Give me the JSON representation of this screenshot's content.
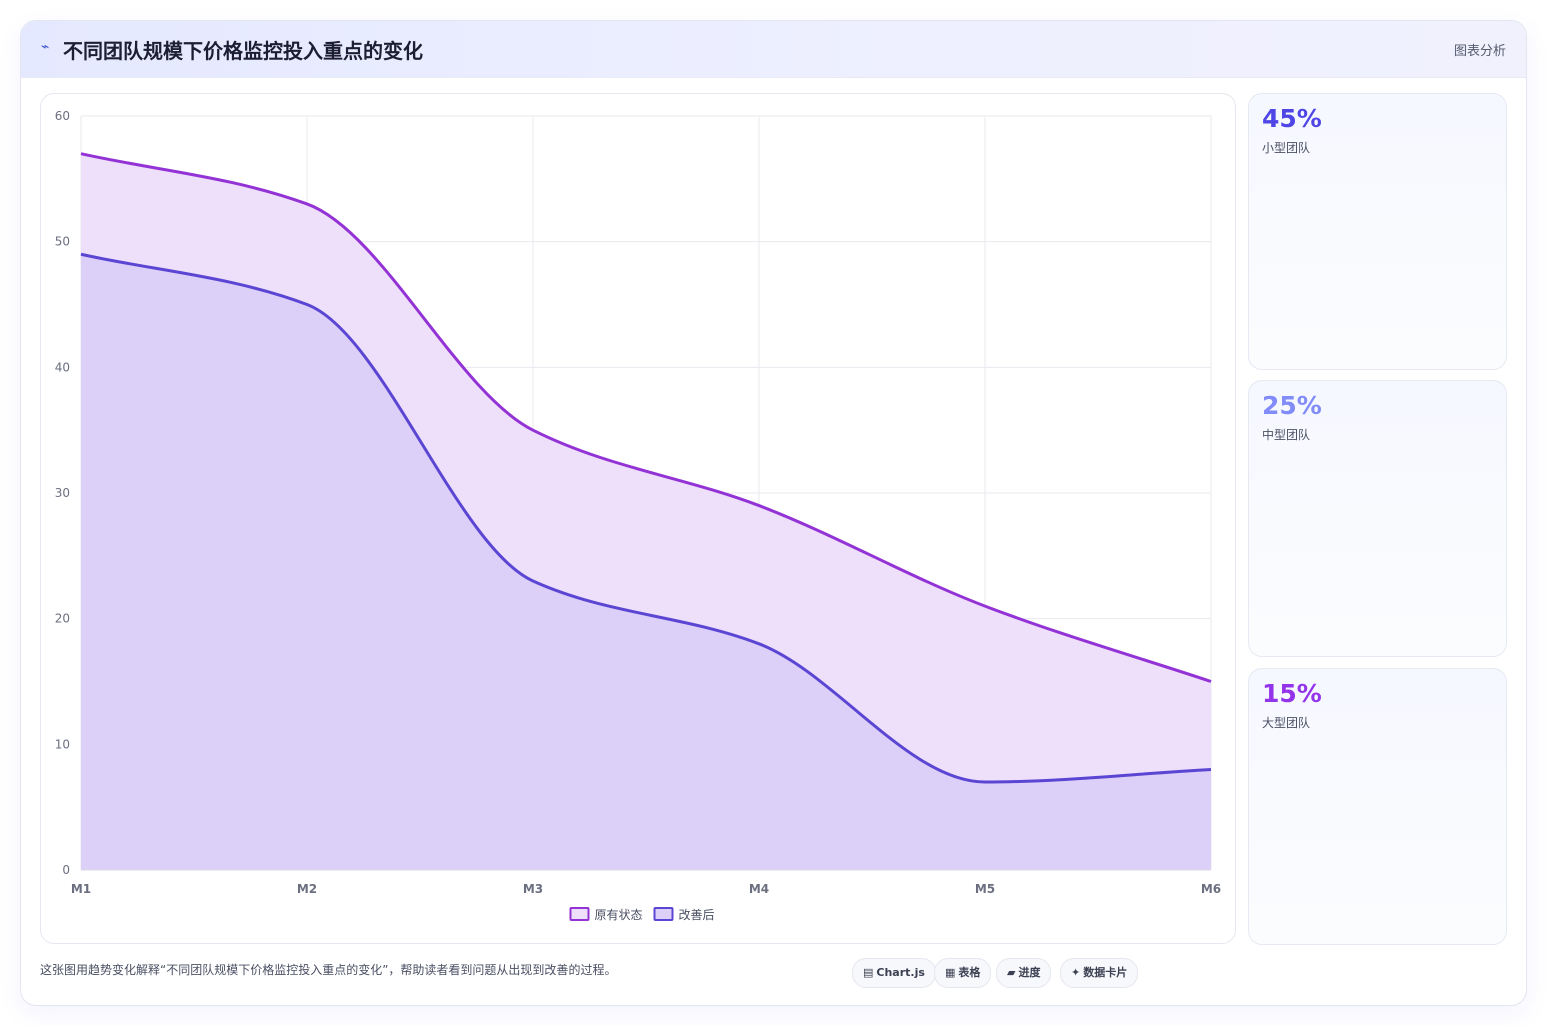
{
  "header": {
    "icon": "trend-icon",
    "title": "不同团队规模下价格监控投入重点的变化",
    "right_label": "图表分析"
  },
  "stats": [
    {
      "value": "45%",
      "label": "小型团队",
      "color": "#4f46e5"
    },
    {
      "value": "25%",
      "label": "中型团队",
      "color": "#818cf8"
    },
    {
      "value": "15%",
      "label": "大型团队",
      "color": "#9333ea"
    }
  ],
  "footer": {
    "description": "这张图用趋势变化解释“不同团队规模下价格监控投入重点的变化”，帮助读者看到问题从出现到改善的过程。",
    "pills": [
      {
        "icon": "chart-icon",
        "glyph": "▤",
        "label": "Chart.js"
      },
      {
        "icon": "table-icon",
        "glyph": "▦",
        "label": "表格"
      },
      {
        "icon": "progress-icon",
        "glyph": "▰",
        "label": "进度"
      },
      {
        "icon": "data-card-icon",
        "glyph": "✦",
        "label": "数据卡片"
      }
    ]
  },
  "chart_data": {
    "type": "area",
    "categories": [
      "M1",
      "M2",
      "M3",
      "M4",
      "M5",
      "M6"
    ],
    "series": [
      {
        "name": "原有状态",
        "values": [
          57,
          53,
          35,
          29,
          21,
          15
        ],
        "color": "#9333d6",
        "fill": "#eee0fa"
      },
      {
        "name": "改善后",
        "values": [
          49,
          45,
          23,
          18,
          7,
          8
        ],
        "color": "#5b46d4",
        "fill": "#dccff8"
      }
    ],
    "ylim": [
      0,
      60
    ],
    "yticks": [
      0,
      10,
      20,
      30,
      40,
      50,
      60
    ],
    "grid": true,
    "legend": "bottom",
    "title": "",
    "xlabel": "",
    "ylabel": ""
  }
}
